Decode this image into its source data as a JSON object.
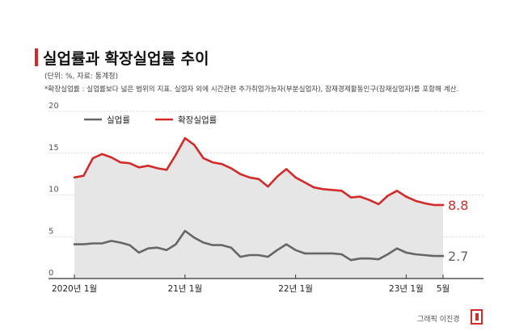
{
  "header": {
    "title": "실업률과 확장실업률 추이",
    "meta": "(단위: %, 자료: 통계청)",
    "note": "*확장실업률 : 실업률보다 넓은 범위의 지표. 실업자 외에 시간관련 추가취업가능자(부분실업자), 잠재경제활동인구(잠재실업자)를 포함해 계산.",
    "credit": "그래픽 이진경"
  },
  "colors": {
    "accent": "#d42a2a",
    "expanded_line": "#d42a2a",
    "unemployment_line": "#666666",
    "area_fill": "#e6e6e6",
    "grid": "#d9d9d9"
  },
  "chart_data": {
    "type": "area",
    "ylim": [
      0,
      20
    ],
    "yticks": [
      "0",
      "5",
      "10",
      "15",
      "20"
    ],
    "xticks": [
      {
        "label": "2020년 1월",
        "index": 0
      },
      {
        "label": "21년 1월",
        "index": 12
      },
      {
        "label": "22년 1월",
        "index": 24
      },
      {
        "label": "23년 1월",
        "index": 36
      },
      {
        "label": "5월",
        "index": 40
      }
    ],
    "legend": {
      "placement": "top-left"
    },
    "series": [
      {
        "name": "실업률",
        "color": "#666666",
        "end_label": "2.7",
        "values": [
          4.1,
          4.1,
          4.2,
          4.2,
          4.5,
          4.3,
          4.0,
          3.1,
          3.6,
          3.7,
          3.4,
          4.1,
          5.7,
          4.9,
          4.3,
          4.0,
          4.0,
          3.7,
          2.6,
          2.8,
          2.8,
          2.6,
          3.4,
          4.1,
          3.4,
          3.0,
          3.0,
          3.0,
          3.0,
          2.9,
          2.2,
          2.4,
          2.4,
          2.3,
          2.9,
          3.6,
          3.1,
          2.9,
          2.8,
          2.7,
          2.7
        ]
      },
      {
        "name": "확장실업률",
        "color": "#d42a2a",
        "end_label": "8.8",
        "values": [
          12.1,
          12.3,
          14.4,
          14.9,
          14.5,
          13.9,
          13.8,
          13.3,
          13.5,
          13.2,
          13.0,
          14.8,
          16.8,
          16.0,
          14.4,
          13.9,
          13.7,
          13.2,
          12.5,
          12.1,
          11.9,
          11.0,
          12.2,
          13.1,
          12.1,
          11.5,
          10.9,
          10.7,
          10.6,
          10.5,
          9.7,
          9.8,
          9.4,
          8.9,
          9.9,
          10.5,
          9.8,
          9.3,
          9.0,
          8.8,
          8.8
        ]
      }
    ]
  }
}
